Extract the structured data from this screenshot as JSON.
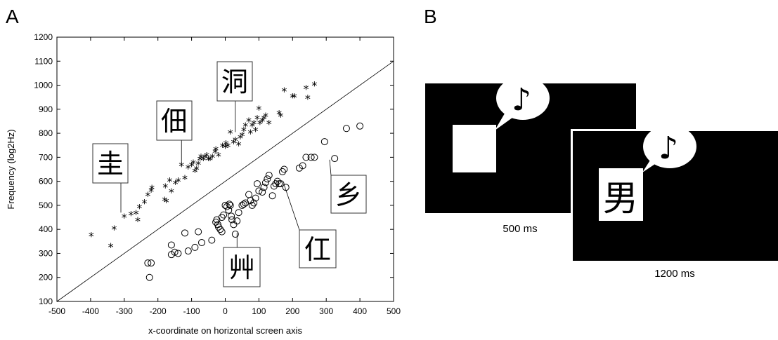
{
  "panels": {
    "a_label": "A",
    "b_label": "B"
  },
  "chart_data": {
    "type": "scatter",
    "title": "",
    "xlabel": "x-coordinate on horizontal screen axis",
    "ylabel": "Frequency (log2Hz)",
    "xlim": [
      -500,
      500
    ],
    "ylim": [
      100,
      1200
    ],
    "xticks": [
      -500,
      -400,
      -300,
      -200,
      -100,
      0,
      100,
      200,
      300,
      400,
      500
    ],
    "yticks": [
      100,
      200,
      300,
      400,
      500,
      600,
      700,
      800,
      900,
      1000,
      1100,
      1200
    ],
    "grid": false,
    "diagonal_line": {
      "from": [
        -500,
        100
      ],
      "to": [
        500,
        1100
      ]
    },
    "series": [
      {
        "marker": "star",
        "points": [
          [
            -398,
            373
          ],
          [
            -340,
            327
          ],
          [
            -330,
            400
          ],
          [
            -300,
            450
          ],
          [
            -280,
            460
          ],
          [
            -265,
            465
          ],
          [
            -260,
            435
          ],
          [
            -255,
            490
          ],
          [
            -240,
            510
          ],
          [
            -230,
            540
          ],
          [
            -220,
            558
          ],
          [
            -218,
            570
          ],
          [
            -180,
            520
          ],
          [
            -175,
            515
          ],
          [
            -178,
            575
          ],
          [
            -165,
            600
          ],
          [
            -160,
            555
          ],
          [
            -148,
            590
          ],
          [
            -140,
            600
          ],
          [
            -130,
            665
          ],
          [
            -120,
            610
          ],
          [
            -110,
            655
          ],
          [
            -100,
            665
          ],
          [
            -95,
            675
          ],
          [
            -90,
            640
          ],
          [
            -85,
            650
          ],
          [
            -80,
            670
          ],
          [
            -75,
            690
          ],
          [
            -72,
            700
          ],
          [
            -65,
            690
          ],
          [
            -60,
            700
          ],
          [
            -55,
            705
          ],
          [
            -50,
            690
          ],
          [
            -45,
            690
          ],
          [
            -38,
            700
          ],
          [
            -30,
            720
          ],
          [
            -28,
            730
          ],
          [
            -20,
            705
          ],
          [
            -8,
            745
          ],
          [
            0,
            740
          ],
          [
            2,
            755
          ],
          [
            8,
            745
          ],
          [
            15,
            800
          ],
          [
            25,
            760
          ],
          [
            30,
            770
          ],
          [
            40,
            750
          ],
          [
            45,
            780
          ],
          [
            50,
            790
          ],
          [
            55,
            810
          ],
          [
            60,
            830
          ],
          [
            70,
            850
          ],
          [
            75,
            800
          ],
          [
            80,
            830
          ],
          [
            85,
            840
          ],
          [
            90,
            810
          ],
          [
            95,
            860
          ],
          [
            100,
            900
          ],
          [
            103,
            840
          ],
          [
            110,
            850
          ],
          [
            115,
            860
          ],
          [
            120,
            870
          ],
          [
            130,
            840
          ],
          [
            160,
            880
          ],
          [
            165,
            870
          ],
          [
            175,
            975
          ],
          [
            200,
            950
          ],
          [
            205,
            950
          ],
          [
            240,
            985
          ],
          [
            245,
            945
          ],
          [
            265,
            1000
          ]
        ]
      },
      {
        "marker": "circle",
        "points": [
          [
            -230,
            260
          ],
          [
            -220,
            260
          ],
          [
            -225,
            200
          ],
          [
            -160,
            335
          ],
          [
            -160,
            295
          ],
          [
            -150,
            305
          ],
          [
            -140,
            300
          ],
          [
            -120,
            385
          ],
          [
            -110,
            310
          ],
          [
            -90,
            325
          ],
          [
            -80,
            390
          ],
          [
            -70,
            345
          ],
          [
            -40,
            355
          ],
          [
            -28,
            430
          ],
          [
            -25,
            440
          ],
          [
            -22,
            420
          ],
          [
            -20,
            410
          ],
          [
            -15,
            400
          ],
          [
            -10,
            450
          ],
          [
            -5,
            460
          ],
          [
            0,
            500
          ],
          [
            5,
            495
          ],
          [
            10,
            480
          ],
          [
            12,
            505
          ],
          [
            15,
            500
          ],
          [
            18,
            455
          ],
          [
            20,
            440
          ],
          [
            25,
            420
          ],
          [
            30,
            380
          ],
          [
            40,
            470
          ],
          [
            50,
            500
          ],
          [
            55,
            505
          ],
          [
            60,
            510
          ],
          [
            70,
            545
          ],
          [
            75,
            520
          ],
          [
            80,
            500
          ],
          [
            85,
            510
          ],
          [
            90,
            530
          ],
          [
            95,
            590
          ],
          [
            100,
            560
          ],
          [
            110,
            555
          ],
          [
            115,
            575
          ],
          [
            120,
            595
          ],
          [
            125,
            610
          ],
          [
            130,
            625
          ],
          [
            140,
            540
          ],
          [
            145,
            580
          ],
          [
            150,
            590
          ],
          [
            155,
            600
          ],
          [
            160,
            590
          ],
          [
            165,
            590
          ],
          [
            170,
            640
          ],
          [
            175,
            650
          ],
          [
            180,
            575
          ],
          [
            220,
            655
          ],
          [
            230,
            665
          ],
          [
            240,
            700
          ],
          [
            255,
            700
          ],
          [
            265,
            700
          ],
          [
            295,
            765
          ],
          [
            325,
            695
          ],
          [
            360,
            820
          ],
          [
            400,
            830
          ],
          [
            -10,
            390
          ],
          [
            35,
            435
          ]
        ]
      }
    ],
    "annotations": [
      {
        "char": "圭",
        "point": [
          -310,
          470
        ]
      },
      {
        "char": "佃",
        "point": [
          -130,
          665
        ]
      },
      {
        "char": "洞",
        "point": [
          30,
          805
        ]
      },
      {
        "char": "艸",
        "point": [
          35,
          385
        ]
      },
      {
        "char": "仜",
        "point": [
          175,
          585
        ]
      },
      {
        "char": "乡",
        "point": [
          310,
          690
        ]
      }
    ]
  },
  "panel_b": {
    "first_time": "500 ms",
    "second_time": "1200 ms",
    "character": "男",
    "note_symbol": "♪"
  }
}
